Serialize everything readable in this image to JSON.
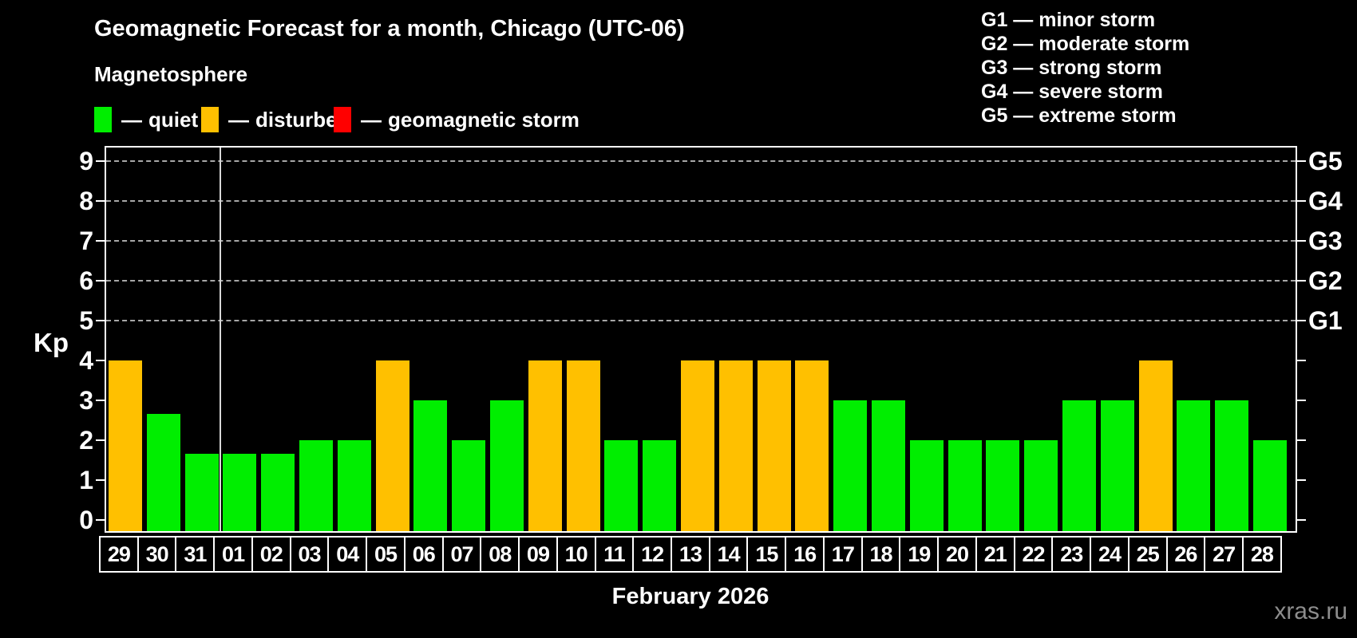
{
  "title": "Geomagnetic Forecast for a month, Chicago (UTC-06)",
  "subtitle": "Magnetosphere",
  "legend": {
    "dash": "—",
    "items": [
      {
        "label": "quiet",
        "color": "#00ee00"
      },
      {
        "label": "disturbed",
        "color": "#ffc000"
      },
      {
        "label": "geomagnetic storm",
        "color": "#ff0000"
      }
    ]
  },
  "g_legend": [
    "G1 — minor storm",
    "G2 — moderate storm",
    "G3 — strong storm",
    "G4 — severe storm",
    "G5 — extreme storm"
  ],
  "watermark": "xras.ru",
  "chart_data": {
    "type": "bar",
    "title": "Geomagnetic Forecast for a month, Chicago (UTC-06)",
    "xlabel": "February 2026",
    "ylabel": "Kp",
    "ylim": [
      0,
      9
    ],
    "yticks": [
      0,
      1,
      2,
      3,
      4,
      5,
      6,
      7,
      8,
      9
    ],
    "gridlines_at": [
      5,
      6,
      7,
      8,
      9
    ],
    "grid": "dashed horizontal at storm levels only",
    "legend_position": "top-left",
    "right_axis": [
      {
        "kp": 5,
        "label": "G1"
      },
      {
        "kp": 6,
        "label": "G2"
      },
      {
        "kp": 7,
        "label": "G3"
      },
      {
        "kp": 8,
        "label": "G4"
      },
      {
        "kp": 9,
        "label": "G5"
      }
    ],
    "categories": [
      "29",
      "30",
      "31",
      "01",
      "02",
      "03",
      "04",
      "05",
      "06",
      "07",
      "08",
      "09",
      "10",
      "11",
      "12",
      "13",
      "14",
      "15",
      "16",
      "17",
      "18",
      "19",
      "20",
      "21",
      "22",
      "23",
      "24",
      "25",
      "26",
      "27",
      "28"
    ],
    "values": [
      4,
      2.67,
      1.67,
      1.67,
      1.67,
      2,
      2,
      4,
      3,
      2,
      3,
      4,
      4,
      2,
      2,
      4,
      4,
      4,
      4,
      3,
      3,
      2,
      2,
      2,
      2,
      3,
      3,
      4,
      3,
      3,
      2
    ],
    "statuses": [
      "disturbed",
      "quiet",
      "quiet",
      "quiet",
      "quiet",
      "quiet",
      "quiet",
      "disturbed",
      "quiet",
      "quiet",
      "quiet",
      "disturbed",
      "disturbed",
      "quiet",
      "quiet",
      "disturbed",
      "disturbed",
      "disturbed",
      "disturbed",
      "quiet",
      "quiet",
      "quiet",
      "quiet",
      "quiet",
      "quiet",
      "quiet",
      "quiet",
      "disturbed",
      "quiet",
      "quiet",
      "quiet"
    ],
    "colors": {
      "quiet": "#00ee00",
      "disturbed": "#ffc000",
      "storm": "#ff0000"
    },
    "month_separator_after_index": 2
  }
}
